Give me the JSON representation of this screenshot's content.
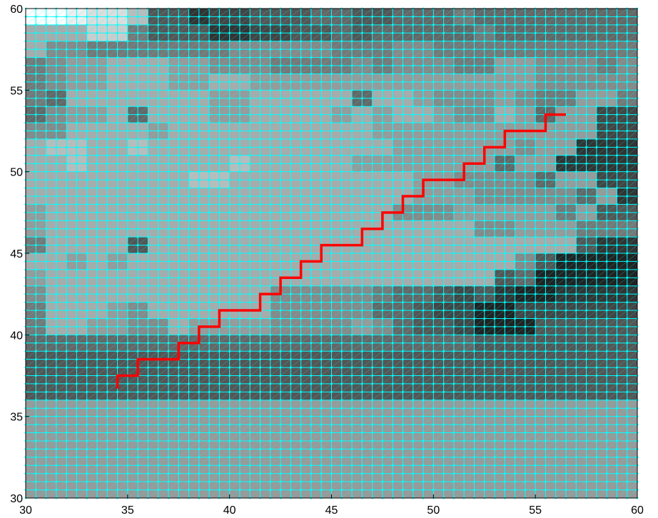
{
  "chart_data": {
    "type": "heatmap",
    "title": "",
    "xlabel": "",
    "ylabel": "",
    "xlim": [
      30,
      60
    ],
    "ylim": [
      30,
      60
    ],
    "x_ticks": [
      "30",
      "35",
      "40",
      "45",
      "50",
      "55",
      "60"
    ],
    "y_ticks": [
      "30",
      "35",
      "40",
      "45",
      "50",
      "55",
      "60"
    ],
    "grid": true,
    "grid_color": "#00FFFF",
    "colormap": "gray (0 = black, 1 = white)",
    "cell_size": 1,
    "grid_origin": [
      30,
      30
    ],
    "cell_values": [
      "ffeddb5534455566556667666666666",
      "aaacc755533445565666667666666666",
      "a887777777888887778877777777777",
      "7899aaa99888777787888779988878",
      "7899aaa99aa9999999999999988888",
      "76aaaaaaa99aaaaa6aa988898779977",
      "6899a6aaa99aaaa9a9aa988a96994",
      "88aaaa9aaaaaaaaaa999999999994",
      "abbaabaaaaaaaaaaaa9999998993",
      "aabaaaaaaabaaaaa99999996993",
      "aaaaaaaabbaaaaaaaaa9988886994",
      "aaaaaaaaaaaaaaaaaaa99988888693",
      "9aaaaaaaaaaaaaaaaa88899999795",
      "9aaaaaaaaaaaaaaaaaaaaa889997",
      "7aaaa5aaaaaaaaaaaaaaaaaaaaa53",
      "aa9a9aaaaaaaaaaaaaaaaaaa852",
      "9aaaaaaaaaaaaaaaaaaaaaa5622",
      "8aaaaaaaaaaa888887665453223",
      "7aaa98aaaaaa88888665442244",
      "7aa9988a999988889865542225",
      "666666666666666666666655555",
      "555555555555555555555555555",
      "555555555555555555555555555",
      "555555555555555555555555555"
    ],
    "series": [
      {
        "type": "line",
        "color": "#FF0000",
        "x": [
          34.5,
          34.5,
          35.5,
          35.5,
          37.5,
          37.5,
          38.5,
          38.5,
          39.5,
          39.5,
          41.5,
          41.5,
          42.5,
          42.5,
          43.5,
          43.5,
          44.5,
          44.5,
          46.5,
          46.5,
          47.5,
          47.5,
          48.5,
          48.5,
          49.5,
          49.5,
          51.5,
          51.5,
          52.5,
          52.5,
          53.5,
          53.5,
          55.5,
          55.5,
          56.5
        ],
        "y": [
          36.7,
          37.5,
          37.5,
          38.5,
          38.5,
          39.5,
          39.5,
          40.5,
          40.5,
          41.5,
          41.5,
          42.5,
          42.5,
          43.5,
          43.5,
          44.5,
          44.5,
          45.5,
          45.5,
          46.5,
          46.5,
          47.5,
          47.5,
          48.5,
          48.5,
          49.5,
          49.5,
          50.5,
          50.5,
          51.5,
          51.5,
          52.5,
          52.5,
          53.5,
          53.5
        ]
      }
    ]
  }
}
